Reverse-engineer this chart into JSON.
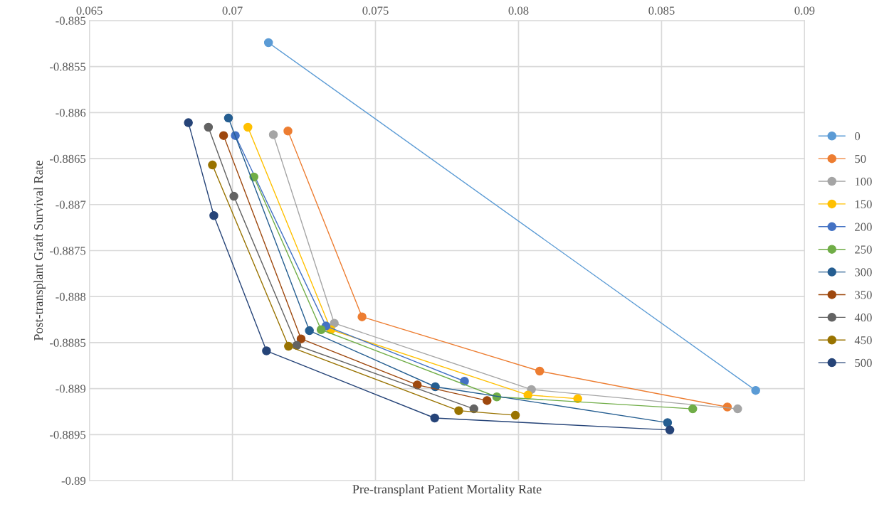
{
  "chart_data": {
    "type": "line",
    "xlabel": "Pre-transplant Patient Mortality Rate",
    "ylabel": "Post-transplant Graft Survival Rate",
    "xlim": [
      0.065,
      0.09
    ],
    "xticks": [
      0.065,
      0.07,
      0.075,
      0.08,
      0.085,
      0.09
    ],
    "ylim": [
      -0.89,
      -0.885
    ],
    "yticks": [
      -0.89,
      -0.8895,
      -0.889,
      -0.8885,
      -0.888,
      -0.8875,
      -0.887,
      -0.8865,
      -0.886,
      -0.8855,
      -0.885
    ],
    "grid": true,
    "legend": "right",
    "marker": "circle",
    "line_style": "solid",
    "series": [
      {
        "name": "0",
        "color": "#5b9bd5",
        "x": [
          0.07126,
          0.08829
        ],
        "values": [
          -0.88524,
          -0.88902
        ]
      },
      {
        "name": "50",
        "color": "#ed7d31",
        "x": [
          0.07194,
          0.07453,
          0.08074,
          0.0873
        ],
        "values": [
          -0.8862,
          -0.88822,
          -0.88881,
          -0.8892
        ]
      },
      {
        "name": "100",
        "color": "#a5a5a5",
        "x": [
          0.07143,
          0.07356,
          0.08045,
          0.08766
        ],
        "values": [
          -0.88624,
          -0.88829,
          -0.88901,
          -0.88922
        ]
      },
      {
        "name": "150",
        "color": "#ffc000",
        "x": [
          0.07054,
          0.07344,
          0.08033,
          0.08207
        ],
        "values": [
          -0.88616,
          -0.88836,
          -0.88907,
          -0.88911
        ]
      },
      {
        "name": "200",
        "color": "#4472c4",
        "x": [
          0.0701,
          0.07327,
          0.07811
        ],
        "values": [
          -0.88625,
          -0.88832,
          -0.88892
        ]
      },
      {
        "name": "250",
        "color": "#70ad47",
        "x": [
          0.07075,
          0.0731,
          0.07924,
          0.08609
        ],
        "values": [
          -0.8867,
          -0.88836,
          -0.88909,
          -0.88922
        ]
      },
      {
        "name": "300",
        "color": "#255e91",
        "x": [
          0.06986,
          0.07269,
          0.07709,
          0.08521
        ],
        "values": [
          -0.88606,
          -0.88837,
          -0.88898,
          -0.88937
        ]
      },
      {
        "name": "350",
        "color": "#9e480e",
        "x": [
          0.06969,
          0.0724,
          0.07646,
          0.0789
        ],
        "values": [
          -0.88625,
          -0.88846,
          -0.88896,
          -0.88913
        ]
      },
      {
        "name": "400",
        "color": "#636363",
        "x": [
          0.06916,
          0.07005,
          0.07225,
          0.07844
        ],
        "values": [
          -0.88616,
          -0.88691,
          -0.88853,
          -0.88922
        ]
      },
      {
        "name": "450",
        "color": "#997300",
        "x": [
          0.0693,
          0.07196,
          0.07791,
          0.07989
        ],
        "values": [
          -0.88657,
          -0.88854,
          -0.88924,
          -0.88929
        ]
      },
      {
        "name": "500",
        "color": "#264478",
        "x": [
          0.06846,
          0.06935,
          0.07119,
          0.07707,
          0.08529
        ],
        "values": [
          -0.88611,
          -0.88712,
          -0.88859,
          -0.88932,
          -0.88945
        ]
      }
    ]
  }
}
